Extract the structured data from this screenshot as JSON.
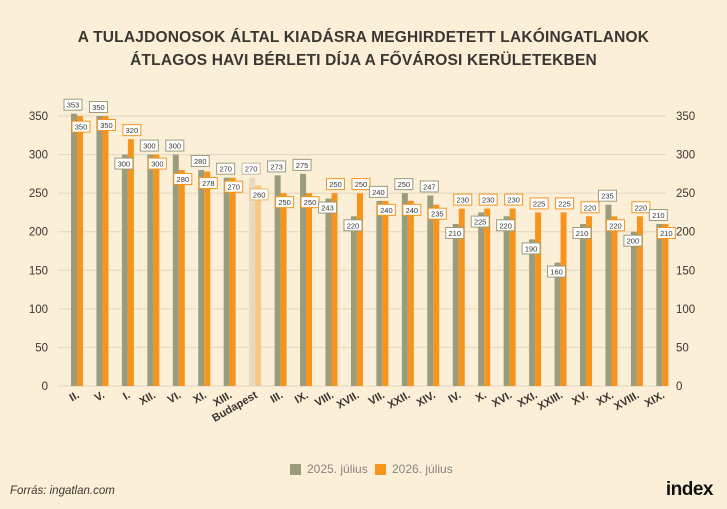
{
  "title_lines": [
    "A TULAJDONOSOK ÁLTAL KIADÁSRA MEGHIRDETETT LAKÓINGATLANOK",
    "ÁTLAGOS HAVI BÉRLETI DÍJA A FŐVÁROSI KERÜLETEKBEN"
  ],
  "source": "Forrás: ingatlan.com",
  "logo": "index",
  "colors": {
    "background": "#FBEFD8",
    "series_2025": "#9A9C7A",
    "series_2026": "#F7941D",
    "budapest_2025": "#E9D9BD",
    "budapest_2026": "#F8C787",
    "grid": "#E2D6C0"
  },
  "chart_data": {
    "type": "bar",
    "categories": [
      "II.",
      "V.",
      "I.",
      "XII.",
      "VI.",
      "XI.",
      "XIII.",
      "Budapest",
      "III.",
      "IX.",
      "VIII.",
      "XVII.",
      "VII.",
      "XXII.",
      "XIV.",
      "IV.",
      "X.",
      "XVI.",
      "XXI.",
      "XXIII.",
      "XV.",
      "XX.",
      "XVIII.",
      "XIX."
    ],
    "highlight_category": "Budapest",
    "series": [
      {
        "name": "2025. július",
        "values": [
          353,
          350,
          300,
          300,
          300,
          280,
          270,
          270,
          273,
          275,
          243,
          220,
          240,
          250,
          247,
          210,
          225,
          220,
          190,
          160,
          210,
          235,
          200,
          210
        ]
      },
      {
        "name": "2026. július",
        "values": [
          350,
          350,
          320,
          300,
          280,
          278,
          270,
          260,
          250,
          250,
          250,
          250,
          240,
          240,
          235,
          230,
          230,
          230,
          225,
          225,
          220,
          220,
          220,
          210
        ]
      }
    ],
    "ylim": [
      0,
      350
    ],
    "yticks": [
      0,
      50,
      100,
      150,
      200,
      250,
      300,
      350
    ],
    "xlabel": "",
    "ylabel": "",
    "grid": true,
    "legend_position": "bottom"
  }
}
